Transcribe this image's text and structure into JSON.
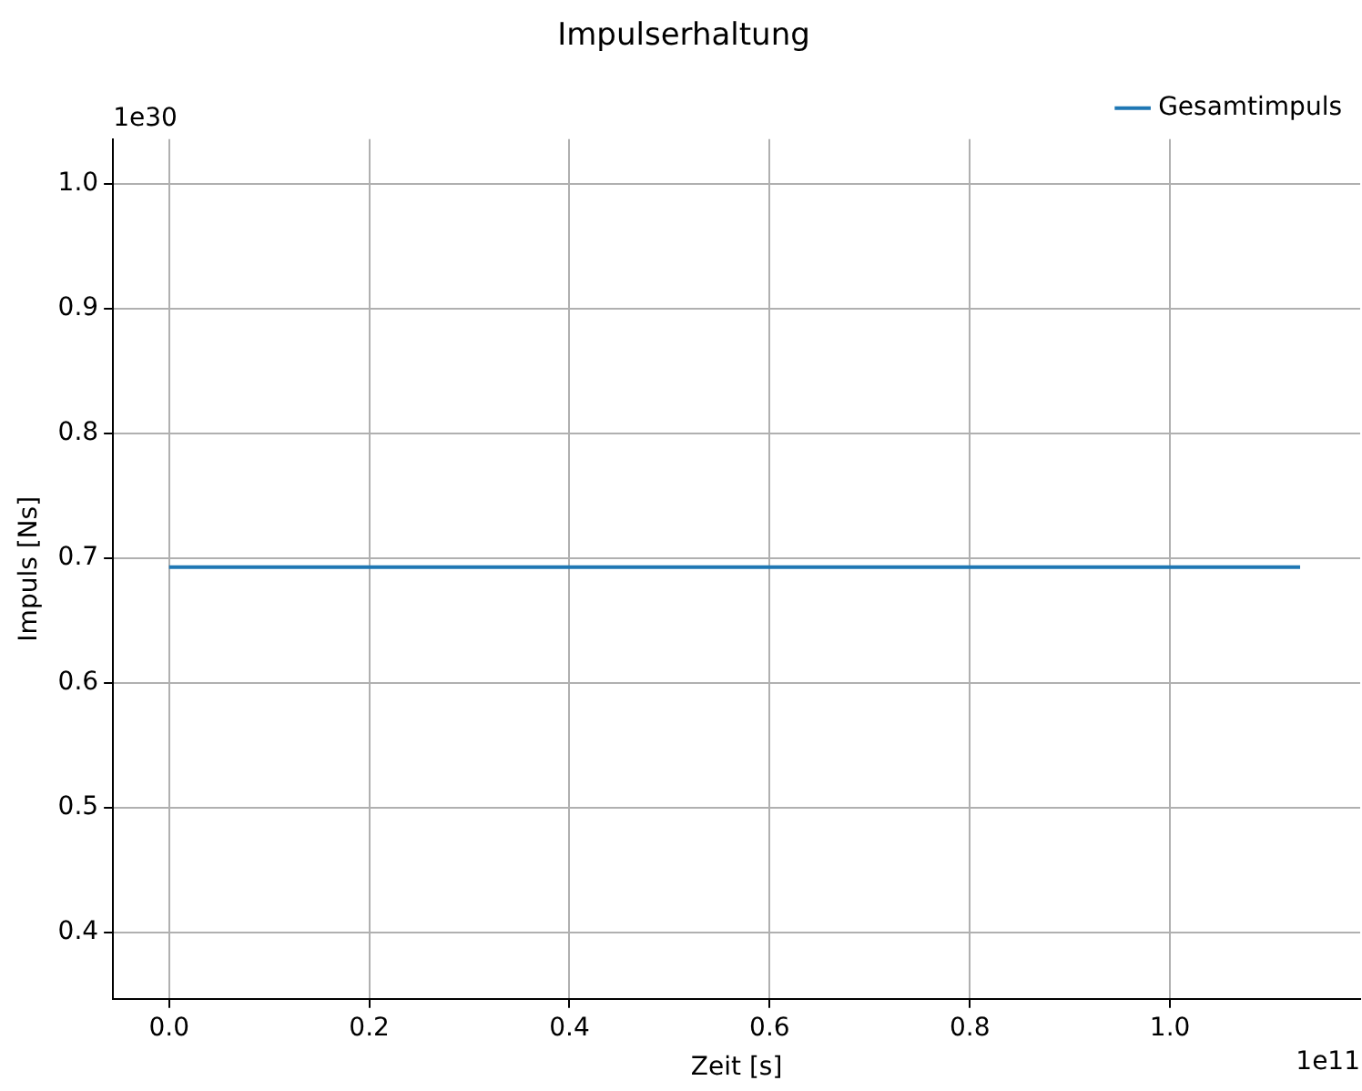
{
  "chart_data": {
    "type": "line",
    "title": "Impulserhaltung",
    "xlabel": "Zeit [s]",
    "ylabel": "Impuls [Ns]",
    "x": [
      0,
      1.13
    ],
    "series": [
      {
        "name": "Gesamtimpuls",
        "color": "#1f77b4",
        "values": [
          0.693,
          0.693
        ]
      }
    ],
    "xlim": [
      -0.056,
      1.19
    ],
    "xticks": [
      {
        "value": 0,
        "label": "0.0"
      },
      0.2,
      0.4,
      0.6,
      0.8,
      {
        "value": 1,
        "label": "1.0"
      }
    ],
    "ylim": [
      0.347,
      1.036
    ],
    "yticks": [
      0.4,
      0.5,
      0.6,
      0.7,
      0.8,
      0.9,
      {
        "value": 1,
        "label": "1.0"
      }
    ],
    "annotations": [
      "1e30",
      "1e11"
    ],
    "grid": true,
    "legend": "top right",
    "marker": "none",
    "line_style": "solid"
  }
}
